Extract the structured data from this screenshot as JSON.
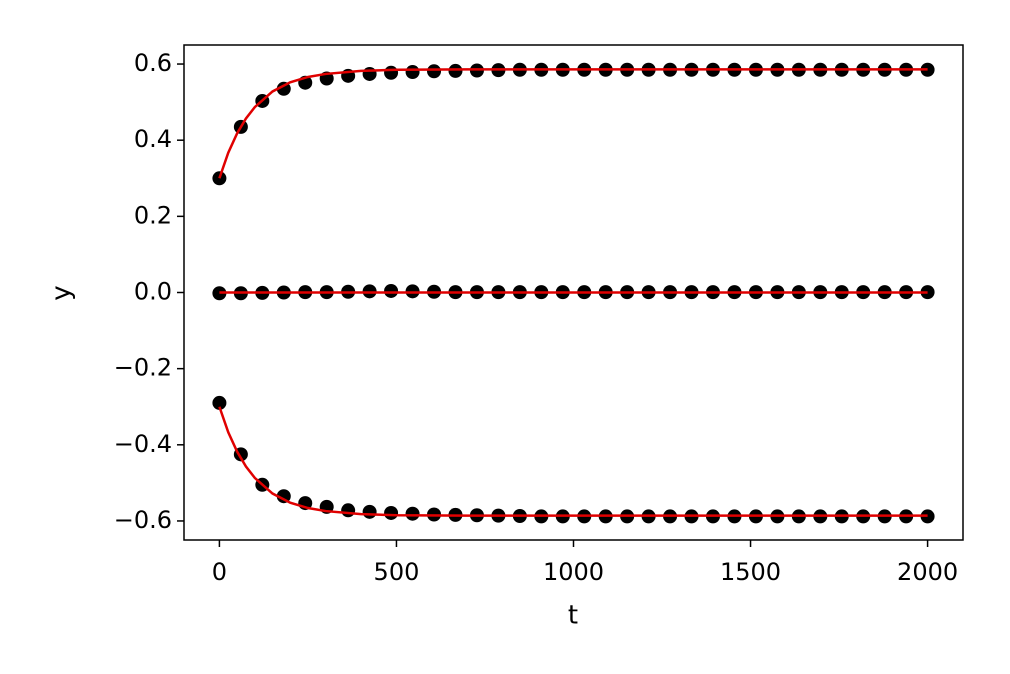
{
  "chart_data": {
    "type": "scatter",
    "xlabel": "t",
    "ylabel": "y",
    "xlim": [
      -100,
      2100
    ],
    "ylim": [
      -0.65,
      0.65
    ],
    "xticks": [
      0,
      500,
      1000,
      1500,
      2000
    ],
    "yticks": [
      {
        "value": -0.6,
        "label": "−0.6"
      },
      {
        "value": -0.4,
        "label": "−0.4"
      },
      {
        "value": -0.2,
        "label": "−0.2"
      },
      {
        "value": 0.0,
        "label": "0.0"
      },
      0.2,
      0.4,
      0.6
    ],
    "grid": false,
    "series": [
      {
        "type": "scatter",
        "color": "#000000",
        "x": [
          0,
          60.6,
          121.2,
          181.8,
          242.4,
          303,
          363.6,
          424.2,
          484.8,
          545.5,
          606.1,
          666.7,
          727.3,
          787.9,
          848.5,
          909.1,
          969.7,
          1030.3,
          1090.9,
          1151.5,
          1212.1,
          1272.7,
          1333.3,
          1393.9,
          1454.5,
          1515.2,
          1575.8,
          1636.4,
          1697,
          1757.6,
          1818.2,
          1878.8,
          1939.4,
          2000
        ],
        "values": [
          0.3,
          0.435,
          0.503,
          0.535,
          0.551,
          0.562,
          0.569,
          0.574,
          0.577,
          0.579,
          0.581,
          0.582,
          0.583,
          0.584,
          0.585,
          0.585,
          0.585,
          0.585,
          0.585,
          0.585,
          0.585,
          0.585,
          0.585,
          0.585,
          0.585,
          0.585,
          0.585,
          0.585,
          0.585,
          0.585,
          0.585,
          0.585,
          0.585,
          0.585
        ]
      },
      {
        "type": "scatter",
        "color": "#000000",
        "x": [
          0,
          60.6,
          121.2,
          181.8,
          242.4,
          303,
          363.6,
          424.2,
          484.8,
          545.5,
          606.1,
          666.7,
          727.3,
          787.9,
          848.5,
          909.1,
          969.7,
          1030.3,
          1090.9,
          1151.5,
          1212.1,
          1272.7,
          1333.3,
          1393.9,
          1454.5,
          1515.2,
          1575.8,
          1636.4,
          1697,
          1757.6,
          1818.2,
          1878.8,
          1939.4,
          2000
        ],
        "values": [
          -0.002,
          -0.002,
          -0.001,
          0,
          0.001,
          0.001,
          0.002,
          0.003,
          0.004,
          0.003,
          0.002,
          0.001,
          0.001,
          0.001,
          0.001,
          0.001,
          0.001,
          0.001,
          0.001,
          0.001,
          0.001,
          0.001,
          0.001,
          0.001,
          0.001,
          0.001,
          0.001,
          0.001,
          0.001,
          0.001,
          0.001,
          0.001,
          0.001,
          0.001
        ]
      },
      {
        "type": "scatter",
        "color": "#000000",
        "x": [
          0,
          60.6,
          121.2,
          181.8,
          242.4,
          303,
          363.6,
          424.2,
          484.8,
          545.5,
          606.1,
          666.7,
          727.3,
          787.9,
          848.5,
          909.1,
          969.7,
          1030.3,
          1090.9,
          1151.5,
          1212.1,
          1272.7,
          1333.3,
          1393.9,
          1454.5,
          1515.2,
          1575.8,
          1636.4,
          1697,
          1757.6,
          1818.2,
          1878.8,
          1939.4,
          2000
        ],
        "values": [
          -0.29,
          -0.425,
          -0.505,
          -0.535,
          -0.553,
          -0.563,
          -0.572,
          -0.576,
          -0.579,
          -0.581,
          -0.583,
          -0.584,
          -0.585,
          -0.586,
          -0.587,
          -0.588,
          -0.588,
          -0.588,
          -0.588,
          -0.588,
          -0.588,
          -0.588,
          -0.588,
          -0.588,
          -0.588,
          -0.588,
          -0.588,
          -0.588,
          -0.588,
          -0.588,
          -0.588,
          -0.588,
          -0.588,
          -0.588
        ]
      },
      {
        "type": "line",
        "color": "#e00000",
        "x": [
          0,
          25,
          50,
          75,
          100,
          150,
          200,
          250,
          300,
          400,
          500,
          700,
          1000,
          1500,
          2000
        ],
        "values": [
          0.3,
          0.367,
          0.418,
          0.457,
          0.487,
          0.528,
          0.552,
          0.566,
          0.574,
          0.582,
          0.585,
          0.586,
          0.586,
          0.586,
          0.586
        ]
      },
      {
        "type": "line",
        "color": "#e00000",
        "x": [
          0,
          2000
        ],
        "values": [
          0,
          0
        ]
      },
      {
        "type": "line",
        "color": "#e00000",
        "x": [
          0,
          25,
          50,
          75,
          100,
          150,
          200,
          250,
          300,
          400,
          500,
          700,
          1000,
          1500,
          2000
        ],
        "values": [
          -0.3,
          -0.367,
          -0.418,
          -0.457,
          -0.487,
          -0.528,
          -0.552,
          -0.566,
          -0.574,
          -0.582,
          -0.585,
          -0.586,
          -0.586,
          -0.586,
          -0.586
        ]
      }
    ]
  }
}
